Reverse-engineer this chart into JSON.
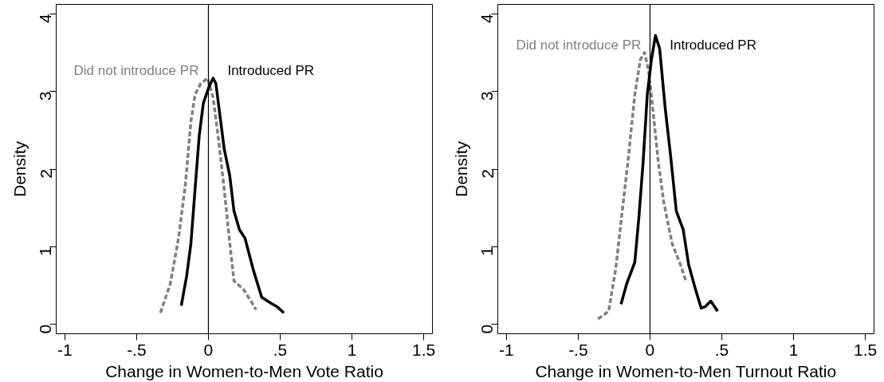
{
  "chart_data": [
    {
      "type": "line",
      "xlabel": "Change in Women-to-Men Vote Ratio",
      "ylabel": "Density",
      "xlim": [
        -1.06,
        1.56
      ],
      "ylim": [
        -0.12,
        4.12
      ],
      "xticks": [
        {
          "value": -1,
          "label": "-1"
        },
        {
          "value": -0.5,
          "label": "-.5"
        },
        {
          "value": 0,
          "label": "0"
        },
        {
          "value": 0.5,
          "label": ".5"
        },
        {
          "value": 1,
          "label": "1"
        },
        {
          "value": 1.5,
          "label": "1.5"
        }
      ],
      "yticks": [
        0,
        1,
        2,
        3,
        4
      ],
      "grid": false,
      "legend": false,
      "marker": "none",
      "ref_lines": [
        {
          "axis": "x",
          "value": 0,
          "color": "#000000"
        }
      ],
      "series": [
        {
          "name": "Did not introduce PR",
          "color": "#808080",
          "line_style": "dashed",
          "x": [
            -0.334,
            -0.266,
            -0.208,
            -0.16,
            -0.122,
            -0.093,
            -0.054,
            -0.006,
            0.033,
            0.071,
            0.11,
            0.149,
            0.178,
            0.245,
            0.293,
            0.332
          ],
          "values": [
            0.15,
            0.52,
            1.11,
            1.81,
            2.61,
            2.96,
            3.1,
            3.17,
            2.92,
            2.37,
            1.74,
            1.04,
            0.56,
            0.45,
            0.31,
            0.19
          ]
        },
        {
          "name": "Introduced PR",
          "color": "#000000",
          "line_style": "solid",
          "x": [
            -0.189,
            -0.151,
            -0.122,
            -0.093,
            -0.064,
            -0.035,
            0.004,
            0.033,
            0.052,
            0.081,
            0.11,
            0.149,
            0.178,
            0.216,
            0.255,
            0.313,
            0.371,
            0.429,
            0.477,
            0.525
          ],
          "values": [
            0.24,
            0.63,
            1.04,
            1.74,
            2.43,
            2.85,
            3.06,
            3.17,
            3.1,
            2.68,
            2.26,
            1.91,
            1.46,
            1.22,
            1.11,
            0.7,
            0.35,
            0.28,
            0.23,
            0.15
          ]
        }
      ]
    },
    {
      "type": "line",
      "xlabel": "Change in Women-to-Men Turnout Ratio",
      "ylabel": "Density",
      "xlim": [
        -1.06,
        1.56
      ],
      "ylim": [
        -0.12,
        4.12
      ],
      "xticks": [
        {
          "value": -1,
          "label": "-1"
        },
        {
          "value": -0.5,
          "label": "-.5"
        },
        {
          "value": 0,
          "label": "0"
        },
        {
          "value": 0.5,
          "label": ".5"
        },
        {
          "value": 1,
          "label": "1"
        },
        {
          "value": 1.5,
          "label": "1.5"
        }
      ],
      "yticks": [
        0,
        1,
        2,
        3,
        4
      ],
      "grid": false,
      "legend": false,
      "marker": "none",
      "ref_lines": [
        {
          "axis": "x",
          "value": 0,
          "color": "#000000"
        }
      ],
      "series": [
        {
          "name": "Did not introduce PR",
          "color": "#808080",
          "line_style": "dashed",
          "x": [
            -0.362,
            -0.288,
            -0.24,
            -0.202,
            -0.154,
            -0.106,
            -0.067,
            -0.038,
            -0.01,
            0.019,
            0.058,
            0.096,
            0.154,
            0.212,
            0.25
          ],
          "values": [
            0.07,
            0.17,
            0.7,
            1.32,
            2.09,
            2.96,
            3.41,
            3.5,
            3.27,
            2.78,
            2.09,
            1.57,
            1.04,
            0.77,
            0.56
          ]
        },
        {
          "name": "Introduced PR",
          "color": "#000000",
          "line_style": "solid",
          "x": [
            -0.202,
            -0.163,
            -0.106,
            -0.077,
            -0.048,
            -0.019,
            0.01,
            0.038,
            0.067,
            0.106,
            0.144,
            0.183,
            0.231,
            0.269,
            0.317,
            0.356,
            0.385,
            0.423,
            0.471
          ],
          "values": [
            0.26,
            0.52,
            0.8,
            1.39,
            2.09,
            2.96,
            3.41,
            3.72,
            3.55,
            2.78,
            2.16,
            1.46,
            1.22,
            0.77,
            0.45,
            0.21,
            0.23,
            0.3,
            0.17
          ]
        }
      ]
    }
  ]
}
